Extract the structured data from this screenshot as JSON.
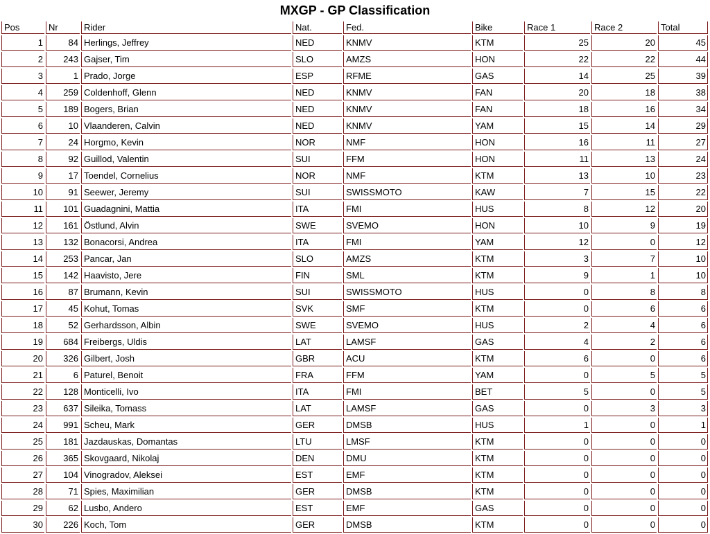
{
  "title": "MXGP - GP Classification",
  "colors": {
    "table_border": "#7b1a1a",
    "text": "#000000"
  },
  "table": {
    "columns": [
      {
        "key": "pos",
        "label": "Pos",
        "numeric": true
      },
      {
        "key": "nr",
        "label": "Nr",
        "numeric": true
      },
      {
        "key": "rider",
        "label": "Rider",
        "numeric": false
      },
      {
        "key": "nat",
        "label": "Nat.",
        "numeric": false
      },
      {
        "key": "fed",
        "label": "Fed.",
        "numeric": false
      },
      {
        "key": "bike",
        "label": "Bike",
        "numeric": false
      },
      {
        "key": "race1",
        "label": "Race 1",
        "numeric": true
      },
      {
        "key": "race2",
        "label": "Race 2",
        "numeric": true
      },
      {
        "key": "total",
        "label": "Total",
        "numeric": true
      }
    ],
    "rows": [
      [
        1,
        84,
        "Herlings, Jeffrey",
        "NED",
        "KNMV",
        "KTM",
        25,
        20,
        45
      ],
      [
        2,
        243,
        "Gajser, Tim",
        "SLO",
        "AMZS",
        "HON",
        22,
        22,
        44
      ],
      [
        3,
        1,
        "Prado, Jorge",
        "ESP",
        "RFME",
        "GAS",
        14,
        25,
        39
      ],
      [
        4,
        259,
        "Coldenhoff, Glenn",
        "NED",
        "KNMV",
        "FAN",
        20,
        18,
        38
      ],
      [
        5,
        189,
        "Bogers, Brian",
        "NED",
        "KNMV",
        "FAN",
        18,
        16,
        34
      ],
      [
        6,
        10,
        "Vlaanderen, Calvin",
        "NED",
        "KNMV",
        "YAM",
        15,
        14,
        29
      ],
      [
        7,
        24,
        "Horgmo, Kevin",
        "NOR",
        "NMF",
        "HON",
        16,
        11,
        27
      ],
      [
        8,
        92,
        "Guillod, Valentin",
        "SUI",
        "FFM",
        "HON",
        11,
        13,
        24
      ],
      [
        9,
        17,
        "Toendel, Cornelius",
        "NOR",
        "NMF",
        "KTM",
        13,
        10,
        23
      ],
      [
        10,
        91,
        "Seewer, Jeremy",
        "SUI",
        "SWISSMOTO",
        "KAW",
        7,
        15,
        22
      ],
      [
        11,
        101,
        "Guadagnini, Mattia",
        "ITA",
        "FMI",
        "HUS",
        8,
        12,
        20
      ],
      [
        12,
        161,
        "Östlund, Alvin",
        "SWE",
        "SVEMO",
        "HON",
        10,
        9,
        19
      ],
      [
        13,
        132,
        "Bonacorsi, Andrea",
        "ITA",
        "FMI",
        "YAM",
        12,
        0,
        12
      ],
      [
        14,
        253,
        "Pancar, Jan",
        "SLO",
        "AMZS",
        "KTM",
        3,
        7,
        10
      ],
      [
        15,
        142,
        "Haavisto, Jere",
        "FIN",
        "SML",
        "KTM",
        9,
        1,
        10
      ],
      [
        16,
        87,
        "Brumann, Kevin",
        "SUI",
        "SWISSMOTO",
        "HUS",
        0,
        8,
        8
      ],
      [
        17,
        45,
        "Kohut, Tomas",
        "SVK",
        "SMF",
        "KTM",
        0,
        6,
        6
      ],
      [
        18,
        52,
        "Gerhardsson, Albin",
        "SWE",
        "SVEMO",
        "HUS",
        2,
        4,
        6
      ],
      [
        19,
        684,
        "Freibergs, Uldis",
        "LAT",
        "LAMSF",
        "GAS",
        4,
        2,
        6
      ],
      [
        20,
        326,
        "Gilbert, Josh",
        "GBR",
        "ACU",
        "KTM",
        6,
        0,
        6
      ],
      [
        21,
        6,
        "Paturel, Benoit",
        "FRA",
        "FFM",
        "YAM",
        0,
        5,
        5
      ],
      [
        22,
        128,
        "Monticelli, Ivo",
        "ITA",
        "FMI",
        "BET",
        5,
        0,
        5
      ],
      [
        23,
        637,
        "Sileika, Tomass",
        "LAT",
        "LAMSF",
        "GAS",
        0,
        3,
        3
      ],
      [
        24,
        991,
        "Scheu, Mark",
        "GER",
        "DMSB",
        "HUS",
        1,
        0,
        1
      ],
      [
        25,
        181,
        "Jazdauskas, Domantas",
        "LTU",
        "LMSF",
        "KTM",
        0,
        0,
        0
      ],
      [
        26,
        365,
        "Skovgaard, Nikolaj",
        "DEN",
        "DMU",
        "KTM",
        0,
        0,
        0
      ],
      [
        27,
        104,
        "Vinogradov, Aleksei",
        "EST",
        "EMF",
        "KTM",
        0,
        0,
        0
      ],
      [
        28,
        71,
        "Spies, Maximilian",
        "GER",
        "DMSB",
        "KTM",
        0,
        0,
        0
      ],
      [
        29,
        62,
        "Lusbo, Andero",
        "EST",
        "EMF",
        "GAS",
        0,
        0,
        0
      ],
      [
        30,
        226,
        "Koch, Tom",
        "GER",
        "DMSB",
        "KTM",
        0,
        0,
        0
      ]
    ]
  }
}
